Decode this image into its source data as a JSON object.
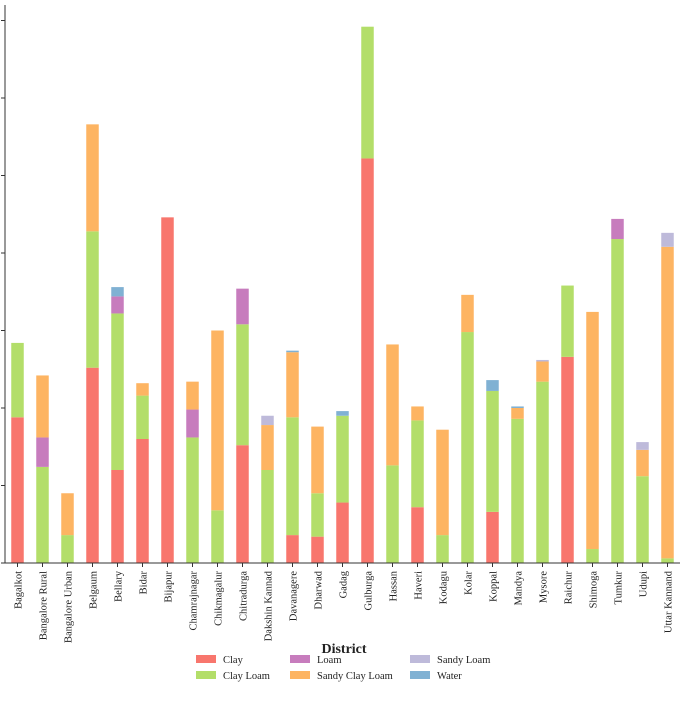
{
  "chart_data": {
    "type": "bar",
    "stacked": true,
    "xlabel": "District",
    "ylabel": "",
    "ylim": [
      0,
      36
    ],
    "yticks": [
      0,
      5,
      10,
      15,
      20,
      25,
      30,
      35
    ],
    "tick_labels_visible": false,
    "grid": false,
    "legend_position": "bottom",
    "categories": [
      "Bagalkot",
      "Bangalore Rural",
      "Bangalore Urban",
      "Belgaum",
      "Bellary",
      "Bidar",
      "Bijapur",
      "Chamrajnagar",
      "Chikmagalur",
      "Chitradurga",
      "Dakshin Kannad",
      "Davanagere",
      "Dharwad",
      "Gadag",
      "Gulburga",
      "Hassan",
      "Haveri",
      "Kodagu",
      "Kolar",
      "Koppal",
      "Mandya",
      "Mysore",
      "Raichur",
      "Shimoga",
      "Tumkur",
      "Udupi",
      "Uttar Kannand"
    ],
    "series": [
      {
        "name": "Clay",
        "color": "#f8766d",
        "values": [
          9.4,
          0,
          0,
          12.6,
          6.0,
          8.0,
          22.3,
          0,
          0,
          7.6,
          0,
          1.8,
          1.7,
          3.9,
          26.1,
          0,
          3.6,
          0,
          0,
          3.3,
          0,
          0,
          13.3,
          0,
          0,
          0,
          0
        ]
      },
      {
        "name": "Clay Loam",
        "color": "#b3de69",
        "values": [
          4.8,
          6.2,
          1.8,
          8.8,
          10.1,
          2.8,
          0,
          8.1,
          3.4,
          7.8,
          6.0,
          7.6,
          2.8,
          5.6,
          8.5,
          6.3,
          5.6,
          1.8,
          14.9,
          7.8,
          9.3,
          11.7,
          4.6,
          0.9,
          20.9,
          5.6,
          0.3
        ]
      },
      {
        "name": "Loam",
        "color": "#c77cbd",
        "values": [
          0,
          1.9,
          0,
          0,
          1.1,
          0,
          0,
          1.8,
          0,
          2.3,
          0,
          0,
          0,
          0,
          0,
          0,
          0,
          0,
          0,
          0,
          0,
          0,
          0,
          0,
          1.3,
          0,
          0
        ]
      },
      {
        "name": "Sandy Clay Loam",
        "color": "#fdb462",
        "values": [
          0,
          4.0,
          2.7,
          6.9,
          0,
          0.8,
          0,
          1.8,
          11.6,
          0,
          2.9,
          4.2,
          4.3,
          0,
          0,
          7.8,
          0.9,
          6.8,
          2.4,
          0,
          0.7,
          1.3,
          0,
          15.3,
          0,
          1.7,
          20.1
        ]
      },
      {
        "name": "Sandy Loam",
        "color": "#bebada",
        "values": [
          0,
          0,
          0,
          0,
          0,
          0,
          0,
          0,
          0,
          0,
          0.6,
          0,
          0,
          0,
          0,
          0,
          0,
          0,
          0,
          0,
          0,
          0.1,
          0,
          0,
          0,
          0.5,
          0.9
        ]
      },
      {
        "name": "Water",
        "color": "#80b1d3",
        "values": [
          0,
          0,
          0,
          0,
          0.6,
          0,
          0,
          0,
          0,
          0,
          0,
          0.1,
          0,
          0.3,
          0,
          0,
          0,
          0,
          0,
          0.7,
          0.1,
          0,
          0,
          0,
          0,
          0,
          0
        ]
      }
    ]
  }
}
